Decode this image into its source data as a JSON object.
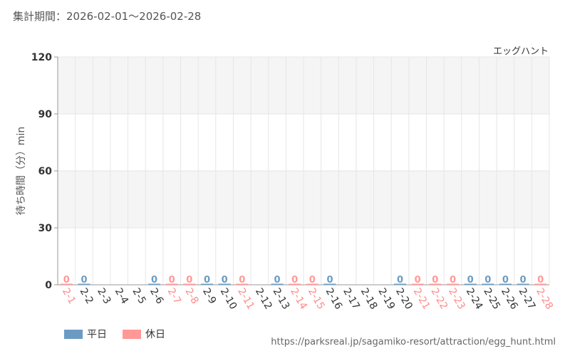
{
  "header": {
    "period": "集計期間：2026-02-01～2026-02-28"
  },
  "chart_data": {
    "type": "bar",
    "title": "エッグハント",
    "ylabel": "待ち時間（分）min",
    "xlabel": "",
    "ylim": [
      0,
      120
    ],
    "yticks": [
      0,
      30,
      60,
      90,
      120
    ],
    "grid": true,
    "legend_position": "bottom-left",
    "categories": [
      "2-1",
      "2-2",
      "2-3",
      "2-4",
      "2-5",
      "2-6",
      "2-7",
      "2-8",
      "2-9",
      "2-10",
      "2-11",
      "2-12",
      "2-13",
      "2-14",
      "2-15",
      "2-16",
      "2-17",
      "2-18",
      "2-19",
      "2-20",
      "2-21",
      "2-22",
      "2-23",
      "2-24",
      "2-25",
      "2-26",
      "2-27",
      "2-28"
    ],
    "day_type": [
      "holiday",
      "weekday",
      "none",
      "none",
      "none",
      "weekday",
      "holiday",
      "holiday",
      "weekday",
      "weekday",
      "holiday",
      "none",
      "weekday",
      "holiday",
      "holiday",
      "weekday",
      "none",
      "none",
      "none",
      "weekday",
      "holiday",
      "holiday",
      "holiday",
      "weekday",
      "weekday",
      "weekday",
      "weekday",
      "holiday"
    ],
    "values": [
      0,
      0,
      null,
      null,
      null,
      0,
      0,
      0,
      0,
      0,
      0,
      null,
      0,
      0,
      0,
      0,
      null,
      null,
      null,
      0,
      0,
      0,
      0,
      0,
      0,
      0,
      0,
      0
    ],
    "series": [
      {
        "name": "平日",
        "color": "#6b9bc3"
      },
      {
        "name": "休日",
        "color": "#ff9896"
      }
    ],
    "label_colors": {
      "weekday": "#333333",
      "holiday": "#ff8a8a",
      "none": "#333333"
    }
  },
  "legend": {
    "weekday_label": "平日",
    "holiday_label": "休日"
  },
  "source": "https://parksreal.jp/sagamiko-resort/attraction/egg_hunt.html"
}
